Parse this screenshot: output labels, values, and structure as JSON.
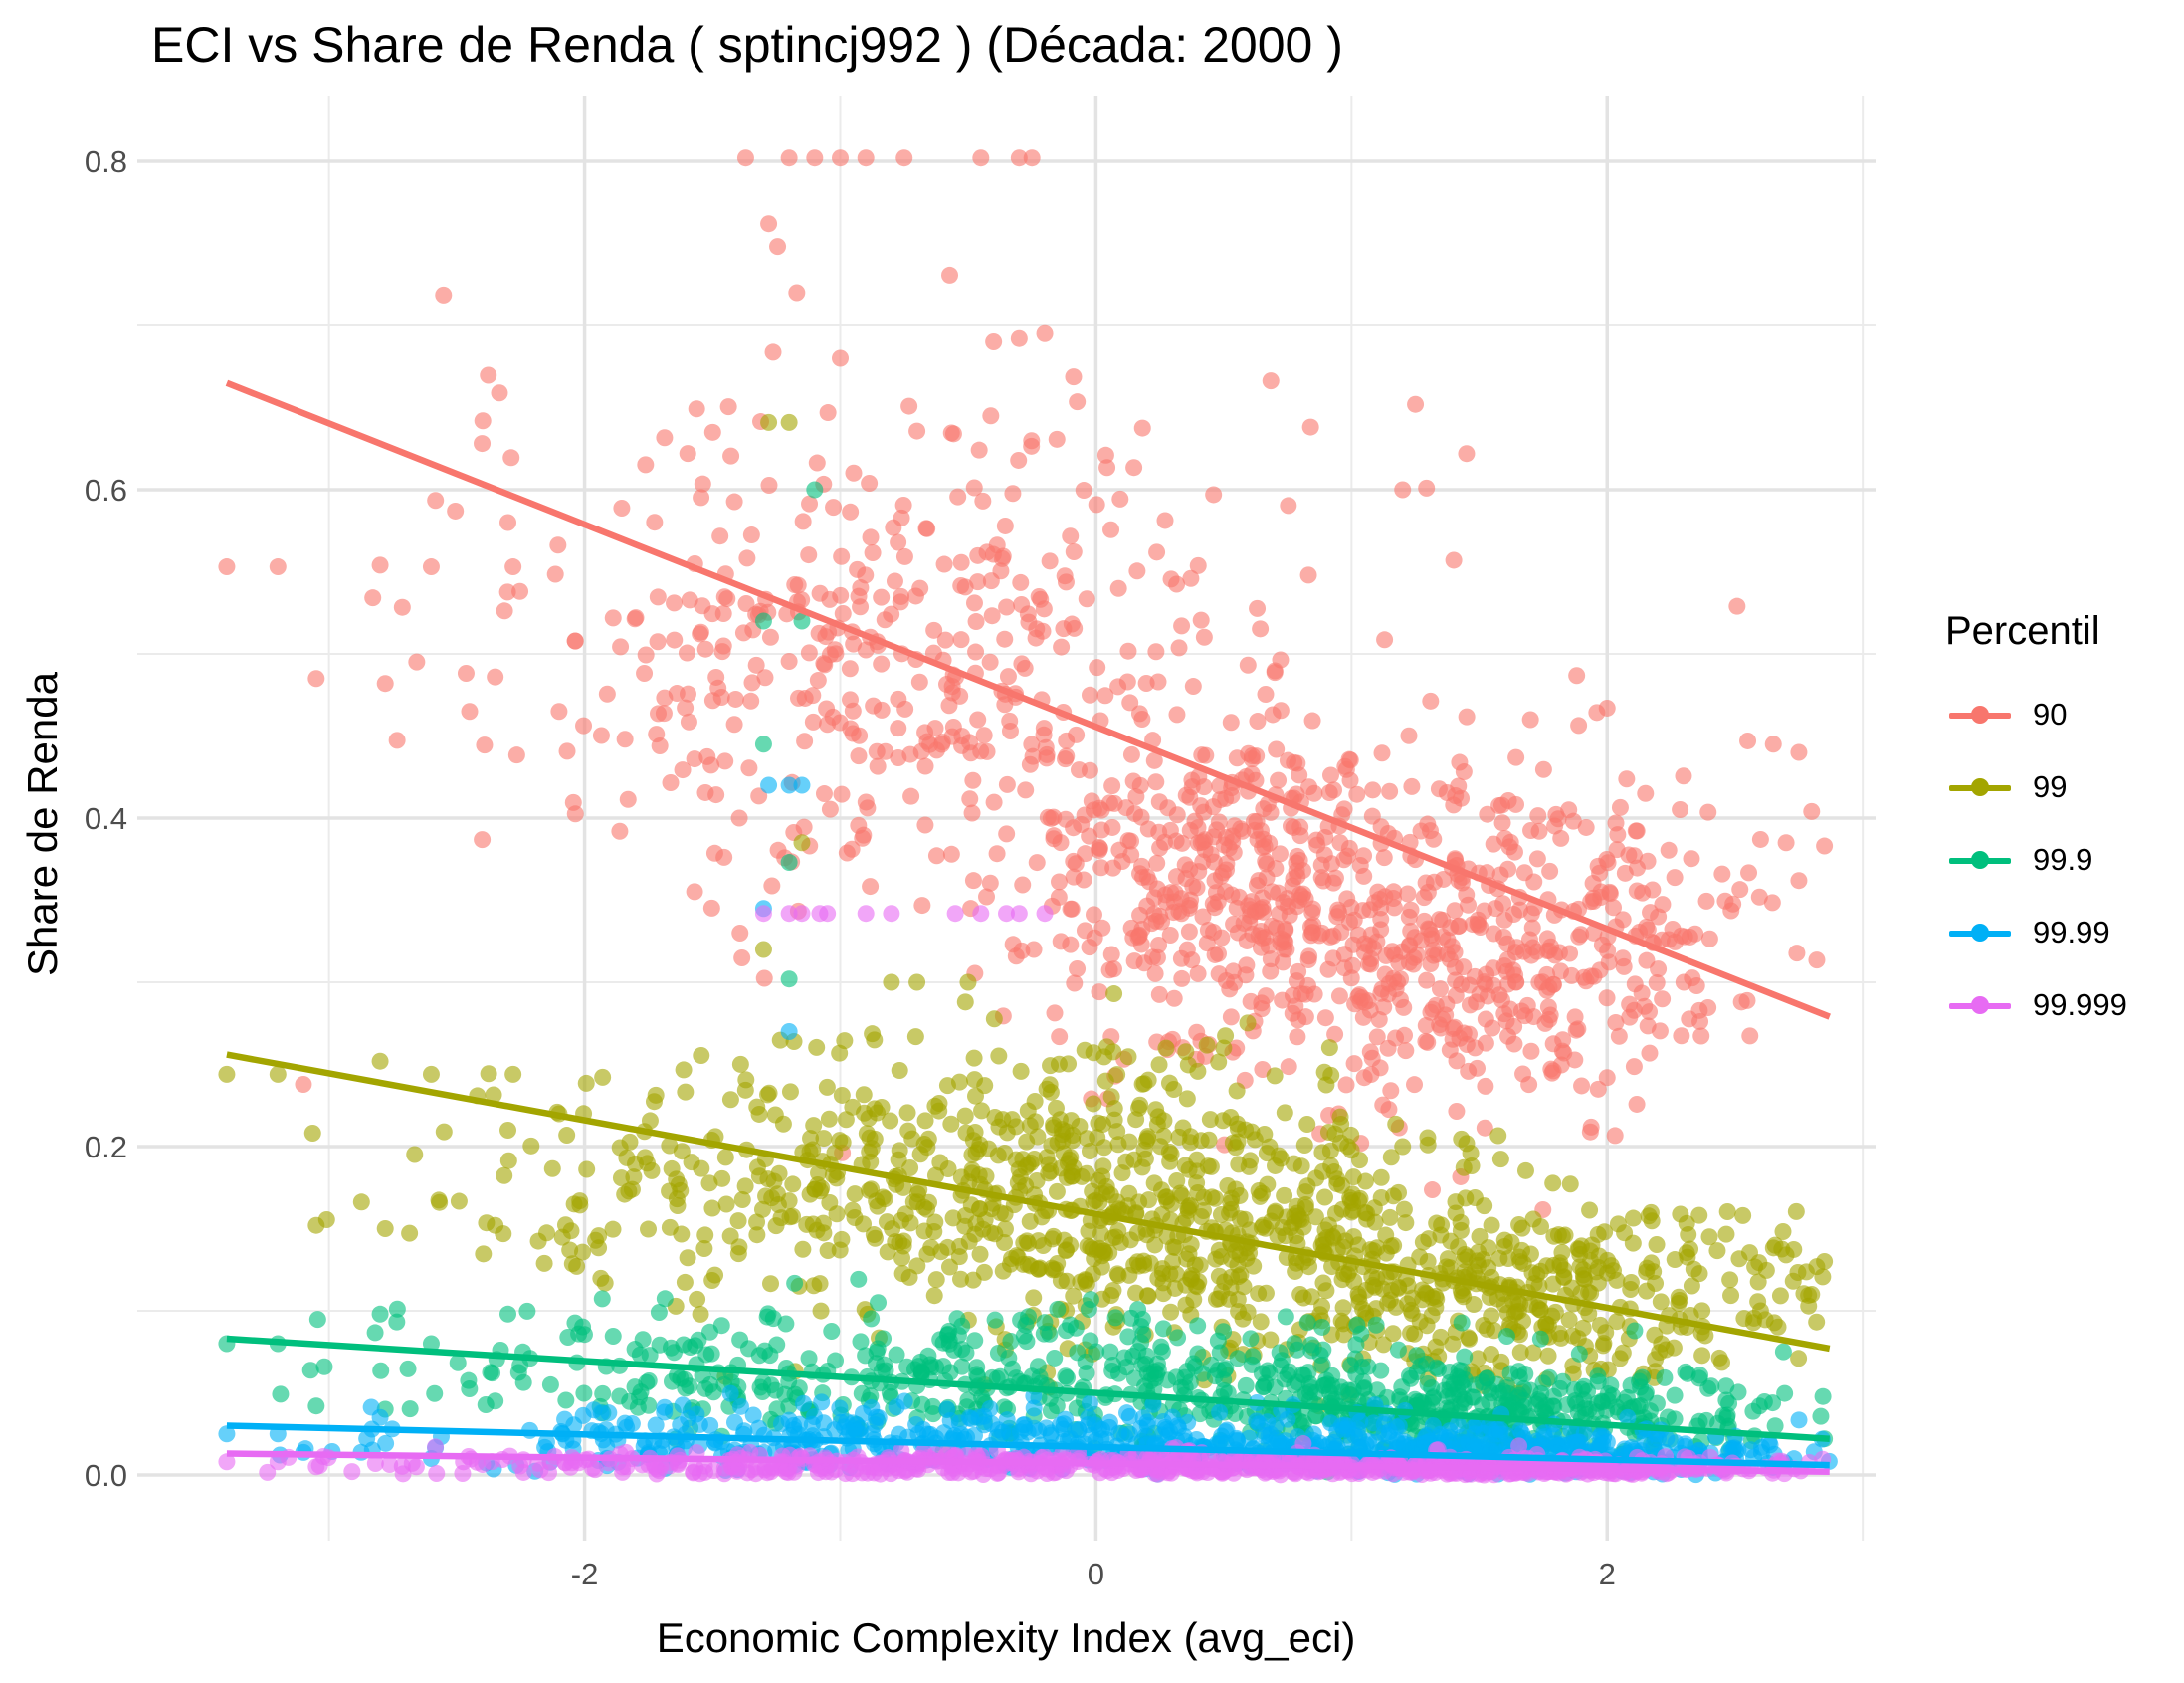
{
  "title": "ECI vs Share de Renda ( sptincj992 ) (Década: 2000 )",
  "legend": {
    "title": "Percentil",
    "items": [
      {
        "label": "90",
        "color": "#F8766D"
      },
      {
        "label": "99",
        "color": "#A3A500"
      },
      {
        "label": "99.9",
        "color": "#00BF7D"
      },
      {
        "label": "99.99",
        "color": "#00B0F6"
      },
      {
        "label": "99.999",
        "color": "#E76BF3"
      }
    ]
  },
  "chart_data": {
    "type": "scatter",
    "title": "ECI vs Share de Renda ( sptincj992 ) (Década: 2000 )",
    "xlabel": "Economic Complexity Index (avg_eci)",
    "ylabel": "Share de Renda",
    "xlim": [
      -3.75,
      3.05
    ],
    "ylim": [
      -0.04,
      0.84
    ],
    "xticks": [
      -2,
      0,
      2
    ],
    "yticks": [
      0.0,
      0.2,
      0.4,
      0.6,
      0.8
    ],
    "xtick_labels": [
      "-2",
      "0",
      "2"
    ],
    "ytick_labels": [
      "0.0",
      "0.2",
      "0.4",
      "0.6",
      "0.8"
    ],
    "grid": true,
    "legend_position": "right",
    "series": [
      {
        "name": "90",
        "color": "#F8766D",
        "trend": {
          "x": [
            -3.4,
            2.87
          ],
          "y": [
            0.665,
            0.279
          ]
        },
        "cluster_centers": [
          {
            "x": -0.8,
            "y": 0.5,
            "sx": 0.85,
            "sy": 0.075
          },
          {
            "x": 0.5,
            "y": 0.36,
            "sx": 0.4,
            "sy": 0.05
          },
          {
            "x": 1.6,
            "y": 0.32,
            "sx": 0.45,
            "sy": 0.05
          }
        ],
        "points": [
          {
            "x": -3.4,
            "y": 0.553
          },
          {
            "x": -3.2,
            "y": 0.553
          },
          {
            "x": -3.05,
            "y": 0.485
          },
          {
            "x": -2.8,
            "y": 0.554
          },
          {
            "x": -2.78,
            "y": 0.482
          },
          {
            "x": -2.6,
            "y": 0.553
          },
          {
            "x": -2.45,
            "y": 0.465
          },
          {
            "x": -2.35,
            "y": 0.486
          },
          {
            "x": -2.28,
            "y": 0.553
          },
          {
            "x": -2.3,
            "y": 0.58
          },
          {
            "x": -2.1,
            "y": 0.465
          },
          {
            "x": -1.37,
            "y": 0.802
          },
          {
            "x": -1.2,
            "y": 0.802
          },
          {
            "x": -1.1,
            "y": 0.802
          },
          {
            "x": -1.0,
            "y": 0.802
          },
          {
            "x": -0.9,
            "y": 0.802
          },
          {
            "x": -0.75,
            "y": 0.802
          },
          {
            "x": -0.45,
            "y": 0.802
          },
          {
            "x": -0.3,
            "y": 0.802
          },
          {
            "x": -0.25,
            "y": 0.802
          },
          {
            "x": -1.28,
            "y": 0.762
          },
          {
            "x": -1.17,
            "y": 0.72
          },
          {
            "x": -0.4,
            "y": 0.69
          },
          {
            "x": -0.3,
            "y": 0.692
          },
          {
            "x": -0.2,
            "y": 0.695
          },
          {
            "x": -1.0,
            "y": 0.68
          },
          {
            "x": 1.25,
            "y": 0.652
          },
          {
            "x": 1.45,
            "y": 0.622
          },
          {
            "x": 1.2,
            "y": 0.6
          },
          {
            "x": 1.4,
            "y": 0.557
          },
          {
            "x": 2.55,
            "y": 0.447
          },
          {
            "x": 2.65,
            "y": 0.445
          },
          {
            "x": 2.75,
            "y": 0.44
          },
          {
            "x": 2.7,
            "y": 0.385
          },
          {
            "x": 2.6,
            "y": 0.387
          },
          {
            "x": 2.85,
            "y": 0.383
          },
          {
            "x": 2.8,
            "y": 0.404
          },
          {
            "x": 2.45,
            "y": 0.366
          },
          {
            "x": 2.75,
            "y": 0.362
          },
          {
            "x": 2.2,
            "y": 0.34
          },
          {
            "x": 2.3,
            "y": 0.3
          },
          {
            "x": 1.7,
            "y": 0.46
          },
          {
            "x": 2.0,
            "y": 0.467
          },
          {
            "x": 2.15,
            "y": 0.415
          },
          {
            "x": 1.85,
            "y": 0.405
          },
          {
            "x": 1.9,
            "y": 0.237
          },
          {
            "x": 2.0,
            "y": 0.242
          },
          {
            "x": 1.05,
            "y": 0.242
          },
          {
            "x": 0.95,
            "y": 0.22
          },
          {
            "x": 0.55,
            "y": 0.26
          }
        ]
      },
      {
        "name": "99",
        "color": "#A3A500",
        "trend": {
          "x": [
            -3.4,
            2.87
          ],
          "y": [
            0.256,
            0.077
          ]
        },
        "cluster_centers": [
          {
            "x": -0.7,
            "y": 0.18,
            "sx": 0.9,
            "sy": 0.04
          },
          {
            "x": 0.3,
            "y": 0.16,
            "sx": 0.5,
            "sy": 0.04
          },
          {
            "x": 1.6,
            "y": 0.11,
            "sx": 0.6,
            "sy": 0.03
          }
        ],
        "points": [
          {
            "x": -3.4,
            "y": 0.244
          },
          {
            "x": -3.2,
            "y": 0.244
          },
          {
            "x": -3.05,
            "y": 0.152
          },
          {
            "x": -2.8,
            "y": 0.252
          },
          {
            "x": -2.78,
            "y": 0.15
          },
          {
            "x": -2.6,
            "y": 0.244
          },
          {
            "x": -2.55,
            "y": 0.209
          },
          {
            "x": -2.35,
            "y": 0.152
          },
          {
            "x": -2.28,
            "y": 0.244
          },
          {
            "x": -2.3,
            "y": 0.21
          },
          {
            "x": -2.1,
            "y": 0.22
          },
          {
            "x": -1.3,
            "y": 0.32
          },
          {
            "x": -1.15,
            "y": 0.385
          },
          {
            "x": -1.2,
            "y": 0.641
          },
          {
            "x": -1.28,
            "y": 0.641
          },
          {
            "x": -0.7,
            "y": 0.3
          },
          {
            "x": -0.5,
            "y": 0.3
          },
          {
            "x": -0.8,
            "y": 0.3
          },
          {
            "x": 2.8,
            "y": 0.11
          },
          {
            "x": 2.7,
            "y": 0.134
          },
          {
            "x": 2.6,
            "y": 0.1
          },
          {
            "x": 2.85,
            "y": 0.13
          },
          {
            "x": 2.4,
            "y": 0.145
          },
          {
            "x": 1.2,
            "y": 0.2
          },
          {
            "x": 1.0,
            "y": 0.16
          },
          {
            "x": 0.5,
            "y": 0.26
          }
        ]
      },
      {
        "name": "99.9",
        "color": "#00BF7D",
        "trend": {
          "x": [
            -3.4,
            2.87
          ],
          "y": [
            0.083,
            0.022
          ]
        },
        "cluster_centers": [
          {
            "x": -0.6,
            "y": 0.06,
            "sx": 1.0,
            "sy": 0.02
          },
          {
            "x": 1.5,
            "y": 0.04,
            "sx": 0.6,
            "sy": 0.015
          }
        ],
        "points": [
          {
            "x": -3.4,
            "y": 0.08
          },
          {
            "x": -3.2,
            "y": 0.08
          },
          {
            "x": -3.05,
            "y": 0.042
          },
          {
            "x": -2.8,
            "y": 0.098
          },
          {
            "x": -2.78,
            "y": 0.04
          },
          {
            "x": -2.6,
            "y": 0.08
          },
          {
            "x": -2.35,
            "y": 0.045
          },
          {
            "x": -2.3,
            "y": 0.098
          },
          {
            "x": -1.3,
            "y": 0.52
          },
          {
            "x": -1.15,
            "y": 0.52
          },
          {
            "x": -1.2,
            "y": 0.373
          },
          {
            "x": -1.3,
            "y": 0.445
          },
          {
            "x": -1.2,
            "y": 0.302
          },
          {
            "x": -1.1,
            "y": 0.6
          },
          {
            "x": 2.85,
            "y": 0.022
          }
        ]
      },
      {
        "name": "99.99",
        "color": "#00B0F6",
        "trend": {
          "x": [
            -3.4,
            2.87
          ],
          "y": [
            0.03,
            0.006
          ]
        },
        "cluster_centers": [
          {
            "x": -0.5,
            "y": 0.022,
            "sx": 1.1,
            "sy": 0.01
          },
          {
            "x": 1.5,
            "y": 0.013,
            "sx": 0.7,
            "sy": 0.007
          }
        ],
        "points": [
          {
            "x": -3.4,
            "y": 0.025
          },
          {
            "x": -3.2,
            "y": 0.025
          },
          {
            "x": -2.8,
            "y": 0.035
          },
          {
            "x": -2.6,
            "y": 0.01
          },
          {
            "x": -1.3,
            "y": 0.345
          },
          {
            "x": -1.2,
            "y": 0.42
          },
          {
            "x": -1.15,
            "y": 0.42
          },
          {
            "x": -1.28,
            "y": 0.42
          },
          {
            "x": -1.2,
            "y": 0.27
          }
        ]
      },
      {
        "name": "99.999",
        "color": "#E76BF3",
        "trend": {
          "x": [
            -3.4,
            2.87
          ],
          "y": [
            0.013,
            0.002
          ]
        },
        "cluster_centers": [
          {
            "x": -0.5,
            "y": 0.006,
            "sx": 1.1,
            "sy": 0.004
          },
          {
            "x": 1.5,
            "y": 0.004,
            "sx": 0.7,
            "sy": 0.003
          }
        ],
        "points": [
          {
            "x": -3.4,
            "y": 0.008
          },
          {
            "x": -3.2,
            "y": 0.008
          },
          {
            "x": -3.05,
            "y": 0.005
          },
          {
            "x": -1.3,
            "y": 0.342
          },
          {
            "x": -1.2,
            "y": 0.342
          },
          {
            "x": -1.15,
            "y": 0.342
          },
          {
            "x": -1.05,
            "y": 0.342
          },
          {
            "x": -0.9,
            "y": 0.342
          },
          {
            "x": -0.8,
            "y": 0.342
          },
          {
            "x": -0.55,
            "y": 0.342
          },
          {
            "x": -0.45,
            "y": 0.342
          },
          {
            "x": -0.35,
            "y": 0.342
          },
          {
            "x": -0.3,
            "y": 0.342
          },
          {
            "x": -0.2,
            "y": 0.342
          },
          {
            "x": -1.08,
            "y": 0.342
          }
        ]
      }
    ]
  }
}
